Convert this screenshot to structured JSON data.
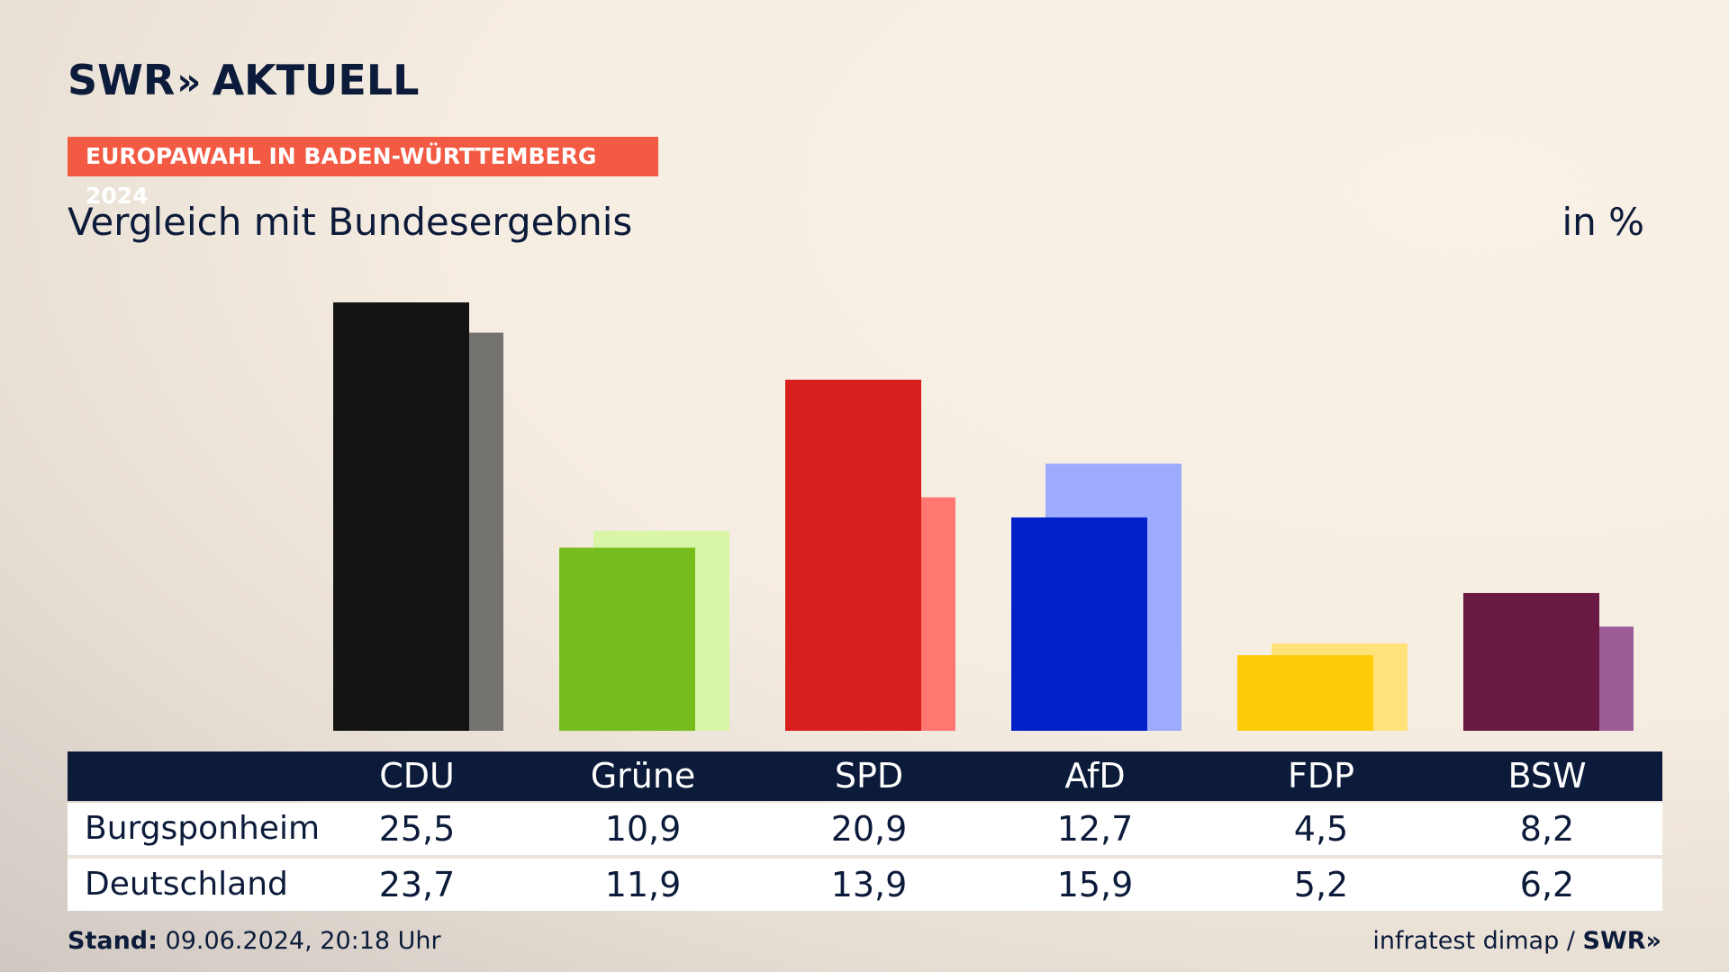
{
  "header": {
    "logo_text": "SWR",
    "logo_chevron": "»",
    "logo_suffix": "AKTUELL",
    "badge": "EUROPAWAHL IN BADEN-WÜRTTEMBERG 2024",
    "subtitle": "Vergleich mit Bundesergebnis",
    "unit": "in %"
  },
  "table": {
    "parties": [
      "CDU",
      "Grüne",
      "SPD",
      "AfD",
      "FDP",
      "BSW"
    ],
    "rows": [
      {
        "label": "Burgsponheim",
        "values": [
          "25,5",
          "10,9",
          "20,9",
          "12,7",
          "4,5",
          "8,2"
        ]
      },
      {
        "label": "Deutschland",
        "values": [
          "23,7",
          "11,9",
          "13,9",
          "15,9",
          "5,2",
          "6,2"
        ]
      }
    ]
  },
  "footer": {
    "stand_label": "Stand:",
    "stand_value": "09.06.2024, 20:18 Uhr",
    "source": "infratest dimap /",
    "source_logo": "SWR»"
  },
  "colors": {
    "primary": [
      "#141414",
      "#78bd1e",
      "#d91e1e",
      "#0022c8",
      "#ffcc0a",
      "#6a1a42"
    ],
    "secondary": [
      "#747370",
      "#d8f5a8",
      "#ff7770",
      "#9dabff",
      "#ffe27a",
      "#9b5c98"
    ],
    "badge": "#f25a44",
    "navy": "#0c1b3a"
  },
  "chart_data": {
    "type": "bar",
    "categories": [
      "CDU",
      "Grüne",
      "SPD",
      "AfD",
      "FDP",
      "BSW"
    ],
    "series": [
      {
        "name": "Burgsponheim",
        "values": [
          25.5,
          10.9,
          20.9,
          12.7,
          4.5,
          8.2
        ]
      },
      {
        "name": "Deutschland",
        "values": [
          23.7,
          11.9,
          13.9,
          15.9,
          5.2,
          6.2
        ]
      }
    ],
    "title": "Vergleich mit Bundesergebnis",
    "ylabel": "in %",
    "ylim": [
      0,
      25.5
    ],
    "grid": false,
    "legend": "none"
  }
}
